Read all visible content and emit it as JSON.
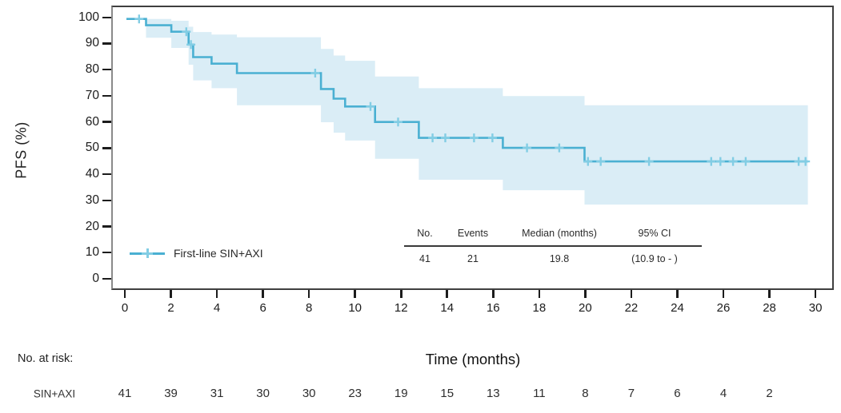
{
  "figure": {
    "y_axis_label": "PFS (%)",
    "x_axis_label": "Time (months)"
  },
  "legend": {
    "label": "First-line SIN+AXI"
  },
  "summary_table": {
    "headers": [
      "No.",
      "Events",
      "Median (months)",
      "95% CI"
    ],
    "values": [
      "41",
      "21",
      "19.8",
      "(10.9 to - )"
    ]
  },
  "at_risk": {
    "title": "No. at risk:",
    "group_label": "SIN+AXI",
    "times": [
      0,
      2,
      4,
      6,
      8,
      10,
      12,
      14,
      16,
      18,
      20,
      22,
      24,
      26,
      28
    ],
    "counts": [
      41,
      39,
      31,
      30,
      30,
      23,
      19,
      15,
      13,
      11,
      8,
      7,
      6,
      4,
      2
    ]
  },
  "chart_data": {
    "type": "line",
    "subtype": "kaplan-meier-step",
    "title": "",
    "xlabel": "Time (months)",
    "ylabel": "PFS (%)",
    "xlim": [
      0,
      30
    ],
    "ylim": [
      0,
      100
    ],
    "x_ticks": [
      0,
      2,
      4,
      6,
      8,
      10,
      12,
      14,
      16,
      18,
      20,
      22,
      24,
      26,
      28,
      30
    ],
    "y_ticks": [
      0,
      10,
      20,
      30,
      40,
      50,
      60,
      70,
      80,
      90,
      100
    ],
    "grid": false,
    "legend_position": "inside-bottom-left",
    "series": [
      {
        "name": "First-line SIN+AXI",
        "n": 41,
        "events": 21,
        "median_months": 19.8,
        "ci_95": "(10.9 to - )",
        "steps": [
          [
            0,
            100
          ],
          [
            0.85,
            97.6
          ],
          [
            1.95,
            95.1
          ],
          [
            2.7,
            90.2
          ],
          [
            2.9,
            85.4
          ],
          [
            3.7,
            82.9
          ],
          [
            4.8,
            79.3
          ],
          [
            8.45,
            73.2
          ],
          [
            9.0,
            69.5
          ],
          [
            9.5,
            66.5
          ],
          [
            10.8,
            60.6
          ],
          [
            12.7,
            54.5
          ],
          [
            16.35,
            50.7
          ],
          [
            19.9,
            45.5
          ]
        ],
        "end_time": 29.6,
        "censor_marks": [
          [
            0.55,
            100
          ],
          [
            2.6,
            95.1
          ],
          [
            2.8,
            90.2
          ],
          [
            8.2,
            79.3
          ],
          [
            10.6,
            66.5
          ],
          [
            11.8,
            60.6
          ],
          [
            13.3,
            54.5
          ],
          [
            13.85,
            54.5
          ],
          [
            15.1,
            54.5
          ],
          [
            15.9,
            54.5
          ],
          [
            17.4,
            50.7
          ],
          [
            18.8,
            50.7
          ],
          [
            20.05,
            45.5
          ],
          [
            20.6,
            45.5
          ],
          [
            22.7,
            45.5
          ],
          [
            25.4,
            45.5
          ],
          [
            25.8,
            45.5
          ],
          [
            26.35,
            45.5
          ],
          [
            26.9,
            45.5
          ],
          [
            29.2,
            45.5
          ],
          [
            29.5,
            45.5
          ]
        ],
        "ci_band": [
          [
            0.85,
            1.95,
            92.8,
            100
          ],
          [
            1.95,
            2.7,
            88.9,
            99.3
          ],
          [
            2.7,
            2.9,
            82.5,
            97.0
          ],
          [
            2.9,
            3.7,
            76.5,
            95.0
          ],
          [
            3.7,
            4.8,
            73.5,
            94.0
          ],
          [
            4.8,
            8.45,
            67.0,
            93.0
          ],
          [
            8.45,
            9.0,
            60.5,
            88.5
          ],
          [
            9.0,
            9.5,
            56.5,
            86.0
          ],
          [
            9.5,
            10.8,
            53.5,
            84.0
          ],
          [
            10.8,
            12.7,
            46.5,
            78.0
          ],
          [
            12.7,
            16.35,
            38.5,
            73.5
          ],
          [
            16.35,
            19.9,
            34.5,
            70.5
          ],
          [
            19.9,
            29.6,
            29.0,
            67.0
          ]
        ]
      }
    ],
    "colors": {
      "line": "#4ab0d2",
      "censor": "#82cde4",
      "band": "#daedf6",
      "axis": "#3f3f3f",
      "text": "#1f1f1f"
    }
  }
}
